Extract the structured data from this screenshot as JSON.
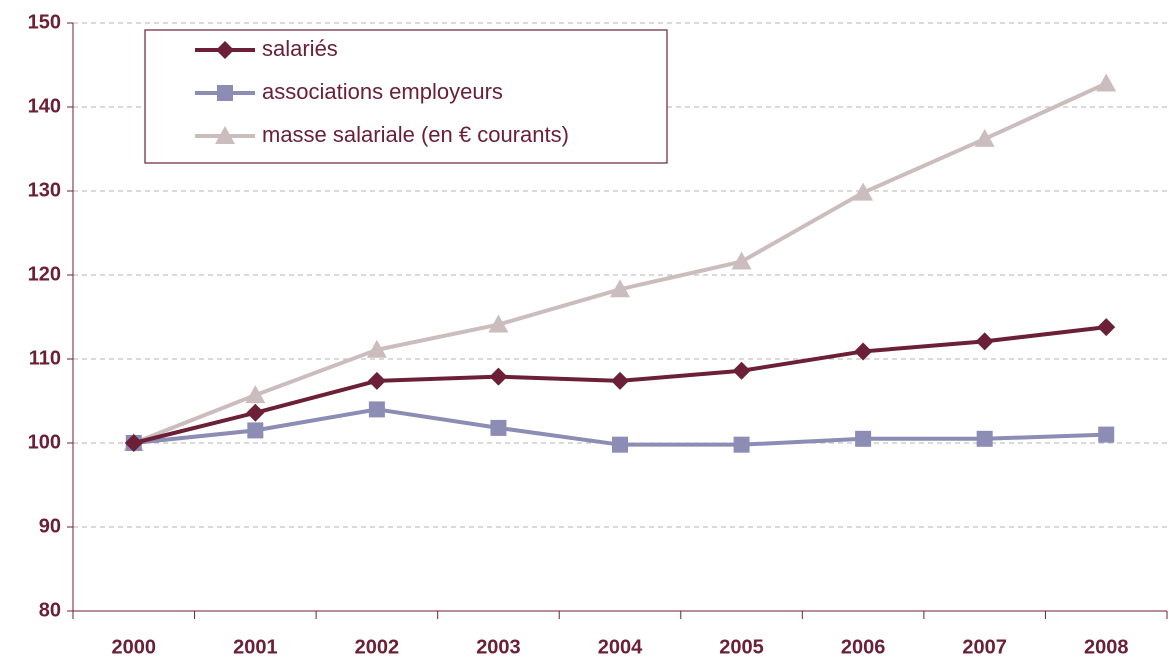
{
  "chart_data": {
    "type": "line",
    "categories": [
      "2000",
      "2001",
      "2002",
      "2003",
      "2004",
      "2005",
      "2006",
      "2007",
      "2008"
    ],
    "series": [
      {
        "name": "salariés",
        "color": "#6b2037",
        "marker": "diamond",
        "values": [
          100,
          103.6,
          107.4,
          107.9,
          107.4,
          108.6,
          110.9,
          112.1,
          113.8
        ]
      },
      {
        "name": "associations employeurs",
        "color": "#8c8cb4",
        "marker": "square",
        "values": [
          100,
          101.5,
          104,
          101.8,
          99.8,
          99.8,
          100.5,
          100.5,
          101
        ]
      },
      {
        "name": "masse salariale (en € courants)",
        "color": "#cbbdbd",
        "marker": "triangle",
        "values": [
          100,
          105.7,
          111.1,
          114.1,
          118.3,
          121.6,
          129.8,
          136.2,
          142.8
        ]
      }
    ],
    "ylim": [
      80,
      150
    ],
    "yticks": [
      80,
      90,
      100,
      110,
      120,
      130,
      140,
      150
    ],
    "grid": true,
    "legend": "top-left"
  }
}
